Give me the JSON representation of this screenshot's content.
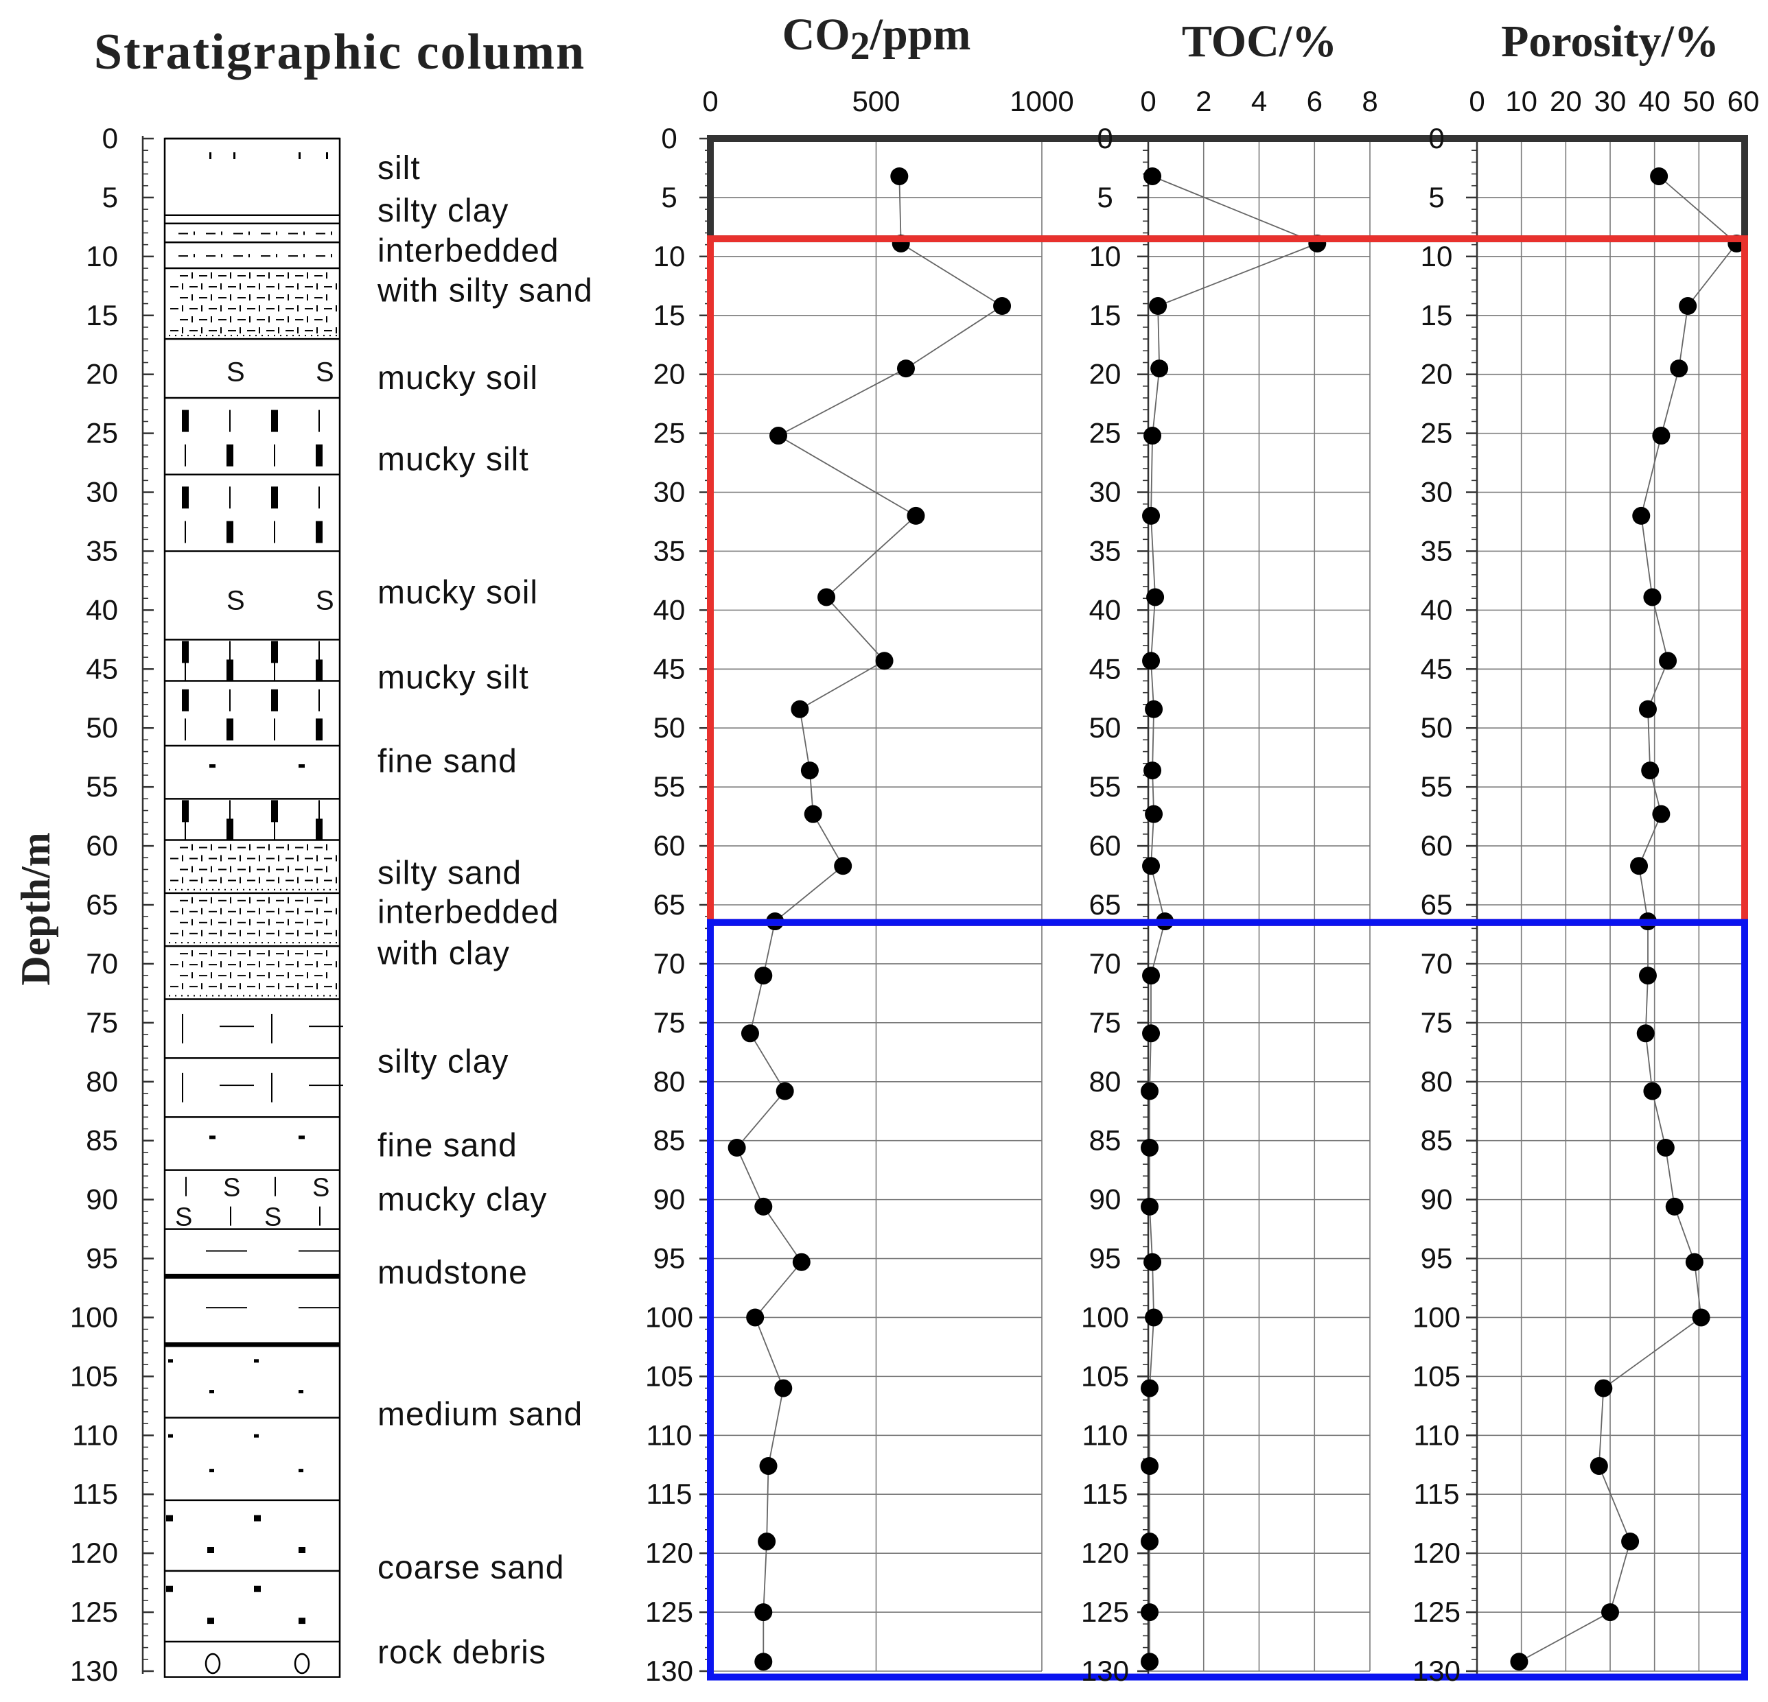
{
  "figure": {
    "strat_title": "Stratigraphic column",
    "depth_label": "Depth/m"
  },
  "chart_data": {
    "type": "scatter",
    "depth_ticks": [
      0,
      5,
      10,
      15,
      20,
      25,
      30,
      35,
      40,
      45,
      50,
      55,
      60,
      65,
      70,
      75,
      80,
      85,
      90,
      95,
      100,
      105,
      110,
      115,
      120,
      125,
      130
    ],
    "ylim": [
      0,
      130
    ],
    "sample_depths": [
      3.2,
      8.9,
      14.2,
      19.5,
      25.2,
      32.0,
      38.9,
      44.3,
      48.4,
      53.6,
      57.3,
      61.7,
      66.4,
      71.0,
      75.9,
      80.8,
      85.6,
      90.6,
      95.3,
      100.0,
      106.0,
      112.6,
      119.0,
      125.0,
      129.2
    ],
    "panels": [
      {
        "name": "co2",
        "title": "CO",
        "title_sub": "2",
        "title_rest": "/ppm",
        "xlim": [
          0,
          1000
        ],
        "xticks": [
          0,
          500,
          1000
        ],
        "values": [
          570,
          575,
          880,
          590,
          205,
          620,
          350,
          525,
          270,
          300,
          310,
          400,
          195,
          160,
          120,
          225,
          80,
          160,
          275,
          135,
          220,
          175,
          170,
          160,
          160
        ]
      },
      {
        "name": "toc",
        "title": "TOC/%",
        "xlim": [
          0,
          8
        ],
        "xticks": [
          0,
          2,
          4,
          6,
          8
        ],
        "values": [
          0.15,
          6.1,
          0.35,
          0.4,
          0.15,
          0.1,
          0.25,
          0.1,
          0.2,
          0.15,
          0.2,
          0.1,
          0.6,
          0.1,
          0.1,
          0.05,
          0.05,
          0.05,
          0.15,
          0.2,
          0.05,
          0.05,
          0.05,
          0.05,
          0.05
        ]
      },
      {
        "name": "porosity",
        "title": "Porosity/%",
        "xlim": [
          0,
          60
        ],
        "xticks": [
          0,
          10,
          20,
          30,
          40,
          50,
          60
        ],
        "values": [
          41,
          58.5,
          47.5,
          45.5,
          41.5,
          37,
          39.5,
          43,
          38.5,
          39,
          41.5,
          36.5,
          38.5,
          38.5,
          38,
          39.5,
          42.5,
          44.5,
          49,
          50.5,
          28.5,
          27.5,
          34.5,
          30,
          9.5
        ]
      }
    ],
    "zones": [
      {
        "name": "zone-top",
        "from": 0,
        "to": 8.5,
        "color": "#333333"
      },
      {
        "name": "zone-middle",
        "from": 8.5,
        "to": 66.5,
        "color": "#e8312d"
      },
      {
        "name": "zone-bottom",
        "from": 66.5,
        "to": 130.5,
        "color": "#0a14f0"
      }
    ]
  },
  "lithology": {
    "layers": [
      {
        "top": 0,
        "bottom": 6.5,
        "pattern": "silt"
      },
      {
        "top": 6.5,
        "bottom": 7.2,
        "pattern": "blank"
      },
      {
        "top": 7.2,
        "bottom": 8.8,
        "pattern": "silty-clay"
      },
      {
        "top": 8.8,
        "bottom": 11.0,
        "pattern": "silty-clay"
      },
      {
        "top": 11.0,
        "bottom": 17.0,
        "pattern": "silty-sand"
      },
      {
        "top": 17.0,
        "bottom": 22.0,
        "pattern": "mucky-soil"
      },
      {
        "top": 22.0,
        "bottom": 28.5,
        "pattern": "mucky-silt"
      },
      {
        "top": 28.5,
        "bottom": 35.0,
        "pattern": "mucky-silt"
      },
      {
        "top": 35.0,
        "bottom": 42.5,
        "pattern": "mucky-soil"
      },
      {
        "top": 42.5,
        "bottom": 46.0,
        "pattern": "mucky-silt"
      },
      {
        "top": 46.0,
        "bottom": 51.5,
        "pattern": "mucky-silt"
      },
      {
        "top": 51.5,
        "bottom": 56.0,
        "pattern": "fine-sand"
      },
      {
        "top": 56.0,
        "bottom": 59.5,
        "pattern": "mucky-silt"
      },
      {
        "top": 59.5,
        "bottom": 64.0,
        "pattern": "silty-sand"
      },
      {
        "top": 64.0,
        "bottom": 68.5,
        "pattern": "silty-sand"
      },
      {
        "top": 68.5,
        "bottom": 73.0,
        "pattern": "silty-sand"
      },
      {
        "top": 73.0,
        "bottom": 78.0,
        "pattern": "silty-clay-lines"
      },
      {
        "top": 78.0,
        "bottom": 83.0,
        "pattern": "silty-clay-lines"
      },
      {
        "top": 83.0,
        "bottom": 87.5,
        "pattern": "fine-sand"
      },
      {
        "top": 87.5,
        "bottom": 92.5,
        "pattern": "mucky-clay"
      },
      {
        "top": 92.5,
        "bottom": 96.5,
        "pattern": "mudstone"
      },
      {
        "top": 96.5,
        "bottom": 102.3,
        "pattern": "mudstone"
      },
      {
        "top": 102.3,
        "bottom": 108.5,
        "pattern": "medium-sand"
      },
      {
        "top": 108.5,
        "bottom": 115.5,
        "pattern": "medium-sand"
      },
      {
        "top": 115.5,
        "bottom": 121.5,
        "pattern": "coarse-sand"
      },
      {
        "top": 121.5,
        "bottom": 127.5,
        "pattern": "coarse-sand"
      },
      {
        "top": 127.5,
        "bottom": 130.5,
        "pattern": "rock-debris"
      }
    ],
    "labels": [
      {
        "text": "silt",
        "depth": 2.5
      },
      {
        "text": "silty clay",
        "depth": 6.1
      },
      {
        "text": "interbedded",
        "depth": 9.5
      },
      {
        "text": "with silty sand",
        "depth": 12.9
      },
      {
        "text": "mucky soil",
        "depth": 20.3
      },
      {
        "text": "mucky silt",
        "depth": 27.2
      },
      {
        "text": "mucky soil",
        "depth": 38.5
      },
      {
        "text": "mucky silt",
        "depth": 45.7
      },
      {
        "text": "fine sand",
        "depth": 52.8
      },
      {
        "text": "silty sand",
        "depth": 62.3
      },
      {
        "text": "interbedded",
        "depth": 65.6
      },
      {
        "text": "with clay",
        "depth": 69.1
      },
      {
        "text": "silty clay",
        "depth": 78.3
      },
      {
        "text": "fine sand",
        "depth": 85.4
      },
      {
        "text": "mucky clay",
        "depth": 90.0
      },
      {
        "text": "mudstone",
        "depth": 96.2
      },
      {
        "text": "medium sand",
        "depth": 108.2
      },
      {
        "text": "coarse sand",
        "depth": 121.2
      },
      {
        "text": "rock debris",
        "depth": 128.4
      }
    ]
  }
}
